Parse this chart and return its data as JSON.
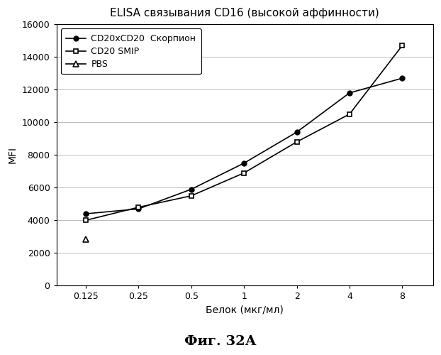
{
  "title": "ELISA связывания CD16 (высокой аффинности)",
  "xlabel": "Белок (мкг/мл)",
  "ylabel": "MFI",
  "caption": "Фиг. 32А",
  "x_values": [
    0.125,
    0.25,
    0.5,
    1,
    2,
    4,
    8
  ],
  "series": [
    {
      "label": "CD20xCD20  Скорпион",
      "y": [
        4400,
        4700,
        5900,
        7500,
        9400,
        11800,
        12700
      ],
      "marker": "o",
      "fillstyle": "full",
      "color": "#000000",
      "linestyle": "-",
      "markersize": 5
    },
    {
      "label": "CD20 SMIP",
      "y": [
        4000,
        4800,
        5500,
        6900,
        8800,
        10500,
        14700
      ],
      "marker": "s",
      "fillstyle": "none",
      "color": "#000000",
      "linestyle": "-",
      "markersize": 5
    },
    {
      "label": "PBS",
      "y": [
        2850,
        null,
        null,
        null,
        null,
        null,
        null
      ],
      "marker": "^",
      "fillstyle": "none",
      "color": "#000000",
      "linestyle": "-",
      "markersize": 6
    }
  ],
  "ylim": [
    0,
    16000
  ],
  "yticks": [
    0,
    2000,
    4000,
    6000,
    8000,
    10000,
    12000,
    14000,
    16000
  ],
  "xticks": [
    0.125,
    0.25,
    0.5,
    1,
    2,
    4,
    8
  ],
  "xticklabels": [
    "0.125",
    "0.25",
    "0.5",
    "1",
    "2",
    "4",
    "8"
  ],
  "background_color": "#ffffff",
  "grid_color": "#bbbbbb",
  "legend_loc": "upper left",
  "title_fontsize": 11,
  "axis_label_fontsize": 10,
  "tick_fontsize": 9,
  "caption_fontsize": 14,
  "legend_fontsize": 9
}
